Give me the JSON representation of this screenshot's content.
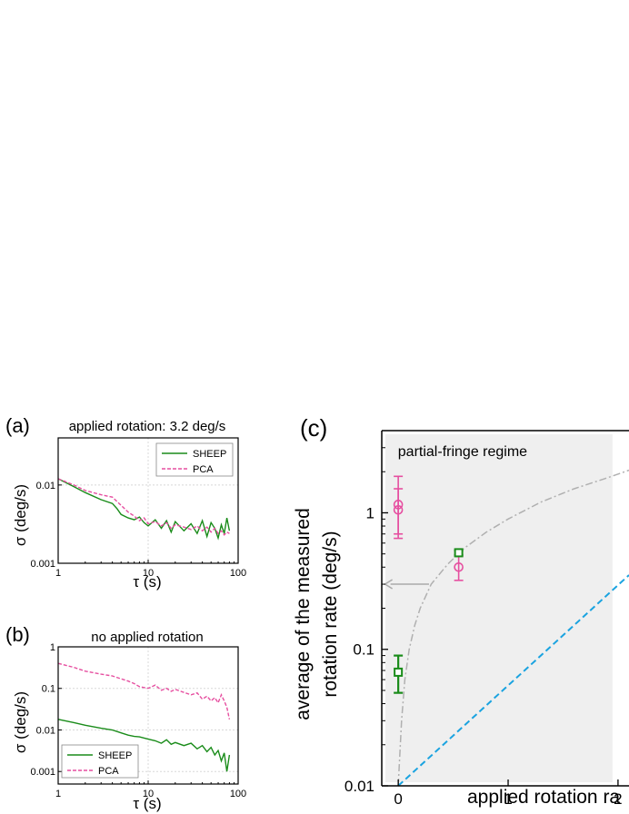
{
  "chart_data": [
    {
      "panel_label": "(a)",
      "type": "line",
      "title": "applied rotation:  3.2 deg/s",
      "xlabel": "τ (s)",
      "ylabel": "σ (deg/s)",
      "x_scale": "log",
      "y_scale": "log",
      "xlim": [
        1,
        100
      ],
      "ylim": [
        0.001,
        0.04
      ],
      "x_ticks": [
        {
          "v": 1,
          "label": "1"
        },
        {
          "v": 10,
          "label": "10"
        },
        {
          "v": 100,
          "label": "100"
        }
      ],
      "y_ticks": [
        {
          "v": 0.001,
          "label": "0.001"
        },
        {
          "v": 0.01,
          "label": "0.01"
        }
      ],
      "legend_position": "top-right",
      "series": [
        {
          "name": "SHEEP",
          "color": "#1a8c1a",
          "style": "solid",
          "x": [
            1,
            1.5,
            2,
            3,
            4,
            4.5,
            5,
            6,
            7,
            8,
            9,
            10,
            12,
            14,
            16,
            18,
            20,
            25,
            30,
            35,
            40,
            45,
            50,
            55,
            60,
            65,
            70,
            75,
            80
          ],
          "y": [
            0.012,
            0.0095,
            0.008,
            0.0065,
            0.0058,
            0.005,
            0.0042,
            0.0038,
            0.0036,
            0.0039,
            0.0033,
            0.003,
            0.0036,
            0.0028,
            0.0035,
            0.0025,
            0.0034,
            0.0026,
            0.0032,
            0.0024,
            0.0035,
            0.0022,
            0.0033,
            0.0028,
            0.0021,
            0.0031,
            0.0024,
            0.0038,
            0.0026
          ]
        },
        {
          "name": "PCA",
          "color": "#e64fa0",
          "style": "dashed",
          "x": [
            1,
            1.5,
            2,
            3,
            4,
            5,
            6,
            7,
            8,
            9,
            10,
            12,
            14,
            16,
            18,
            20,
            25,
            30,
            35,
            40,
            45,
            50,
            55,
            60,
            65,
            70,
            75,
            80
          ],
          "y": [
            0.012,
            0.01,
            0.0085,
            0.0075,
            0.007,
            0.0055,
            0.0045,
            0.004,
            0.0035,
            0.0038,
            0.0032,
            0.0034,
            0.003,
            0.0033,
            0.0028,
            0.0031,
            0.0029,
            0.0027,
            0.003,
            0.0026,
            0.0029,
            0.0025,
            0.0028,
            0.0024,
            0.0026,
            0.0023,
            0.0025,
            0.0024
          ]
        }
      ]
    },
    {
      "panel_label": "(b)",
      "type": "line",
      "title": "no applied rotation",
      "xlabel": "τ (s)",
      "ylabel": "σ (deg/s)",
      "x_scale": "log",
      "y_scale": "log",
      "xlim": [
        1,
        100
      ],
      "ylim": [
        0.0005,
        1
      ],
      "x_ticks": [
        {
          "v": 1,
          "label": "1"
        },
        {
          "v": 10,
          "label": "10"
        },
        {
          "v": 100,
          "label": "100"
        }
      ],
      "y_ticks": [
        {
          "v": 0.001,
          "label": "0.001"
        },
        {
          "v": 0.01,
          "label": "0.01"
        },
        {
          "v": 0.1,
          "label": "0.1"
        },
        {
          "v": 1,
          "label": "1"
        }
      ],
      "legend_position": "bottom-left",
      "series": [
        {
          "name": "SHEEP",
          "color": "#1a8c1a",
          "style": "solid",
          "x": [
            1,
            1.5,
            2,
            3,
            4,
            5,
            6,
            7,
            8,
            10,
            12,
            14,
            16,
            18,
            20,
            25,
            30,
            35,
            40,
            45,
            50,
            55,
            60,
            65,
            70,
            75,
            80
          ],
          "y": [
            0.018,
            0.015,
            0.013,
            0.011,
            0.01,
            0.0085,
            0.0075,
            0.007,
            0.0068,
            0.006,
            0.0055,
            0.0048,
            0.0058,
            0.0045,
            0.005,
            0.0042,
            0.0048,
            0.0035,
            0.0042,
            0.003,
            0.0038,
            0.0025,
            0.0032,
            0.0018,
            0.0028,
            0.001,
            0.0025
          ]
        },
        {
          "name": "PCA",
          "color": "#e64fa0",
          "style": "dashed",
          "x": [
            1,
            1.5,
            2,
            3,
            4,
            5,
            6,
            7,
            8,
            10,
            12,
            14,
            16,
            18,
            20,
            25,
            30,
            35,
            40,
            45,
            50,
            55,
            60,
            65,
            70,
            75,
            80
          ],
          "y": [
            0.4,
            0.32,
            0.26,
            0.22,
            0.2,
            0.17,
            0.15,
            0.13,
            0.11,
            0.1,
            0.12,
            0.09,
            0.1,
            0.085,
            0.095,
            0.08,
            0.07,
            0.078,
            0.055,
            0.065,
            0.05,
            0.06,
            0.045,
            0.07,
            0.05,
            0.035,
            0.018
          ]
        }
      ]
    },
    {
      "panel_label": "(c)",
      "type": "scatter",
      "title": "",
      "region_label": "partial-fringe regime",
      "xlabel": "applied rotation ra",
      "ylabel_line1": "average of the measured",
      "ylabel_line2": "rotation rate (deg/s)",
      "x_scale": "linear",
      "y_scale": "log",
      "xlim": [
        -0.15,
        2.1
      ],
      "ylim": [
        0.01,
        4
      ],
      "shaded_region_x": [
        -0.15,
        1.95
      ],
      "x_ticks": [
        {
          "v": 0,
          "label": "0"
        },
        {
          "v": 1,
          "label": "1"
        },
        {
          "v": 2,
          "label": "2"
        }
      ],
      "y_ticks": [
        {
          "v": 0.01,
          "label": "0.01"
        },
        {
          "v": 0.1,
          "label": "0.1"
        },
        {
          "v": 1,
          "label": "1"
        }
      ],
      "points": [
        {
          "series": "PCA",
          "marker": "circle",
          "color": "#e64fa0",
          "x": 0.0,
          "y": 1.15,
          "err_low": 0.65,
          "err_high": 1.85
        },
        {
          "series": "PCA",
          "marker": "circle",
          "color": "#e64fa0",
          "x": 0.0,
          "y": 1.05,
          "err_low": 0.7,
          "err_high": 1.5
        },
        {
          "series": "PCA",
          "marker": "circle",
          "color": "#e64fa0",
          "x": 0.55,
          "y": 0.4,
          "err_low": 0.32,
          "err_high": 0.48
        },
        {
          "series": "SHEEP",
          "marker": "square",
          "color": "#1a8c1a",
          "x": 0.0,
          "y": 0.068,
          "err_low": 0.048,
          "err_high": 0.09
        },
        {
          "series": "SHEEP",
          "marker": "square",
          "color": "#1a8c1a",
          "x": 0.55,
          "y": 0.51,
          "err_low": 0.49,
          "err_high": 0.53
        }
      ],
      "lines": [
        {
          "kind": "dash-dot",
          "color": "#b0b0b0",
          "x": [
            0.0,
            0.03,
            0.06,
            0.1,
            0.15,
            0.2,
            0.3,
            0.45,
            0.6,
            0.8,
            1.0,
            1.3,
            1.6,
            1.9,
            2.1
          ],
          "y": [
            0.01,
            0.03,
            0.06,
            0.1,
            0.15,
            0.2,
            0.3,
            0.42,
            0.55,
            0.72,
            0.9,
            1.2,
            1.5,
            1.8,
            2.05
          ]
        },
        {
          "kind": "dashed",
          "color": "#1aa3e0",
          "x": [
            0.0,
            2.1
          ],
          "y": [
            0.01,
            0.35
          ]
        }
      ],
      "arrow": {
        "color": "#aaaaaa",
        "x_from": 0.28,
        "x_to": -0.12,
        "y": 0.3
      }
    }
  ]
}
